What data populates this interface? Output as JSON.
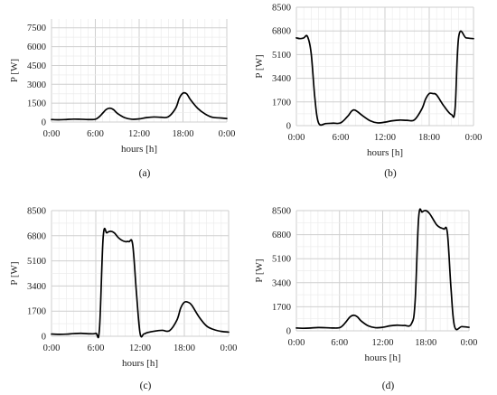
{
  "chart_data": [
    {
      "type": "line",
      "panel": "(a)",
      "xlabel": "hours [h]",
      "ylabel": "P [W]",
      "ylim": [
        0,
        8500
      ],
      "yticks": [
        0,
        1500,
        3000,
        4500,
        6000,
        7500
      ],
      "xlim": [
        0,
        24
      ],
      "xticks": [
        0,
        6,
        12,
        18,
        24
      ],
      "xtick_labels": [
        "0:00",
        "6:00",
        "12:00",
        "18:00",
        "0:00"
      ],
      "grid": true,
      "x": [
        0,
        1,
        2,
        3,
        4,
        5,
        6,
        6.5,
        7,
        7.5,
        8,
        8.5,
        9,
        10,
        11,
        12,
        13,
        14,
        15,
        16,
        17,
        17.5,
        18,
        18.5,
        19,
        20,
        21,
        22,
        23,
        24
      ],
      "series": [
        {
          "values": [
            200,
            180,
            200,
            230,
            220,
            200,
            220,
            400,
            700,
            1000,
            1100,
            980,
            700,
            350,
            220,
            250,
            350,
            400,
            380,
            420,
            1100,
            1900,
            2300,
            2250,
            1800,
            1100,
            650,
            380,
            330,
            280
          ]
        }
      ]
    },
    {
      "type": "line",
      "panel": "(b)",
      "xlabel": "hours [h]",
      "ylabel": "P [W]",
      "ylim": [
        0,
        8500
      ],
      "yticks": [
        0,
        1700,
        3400,
        5100,
        6800,
        8500
      ],
      "xlim": [
        0,
        24
      ],
      "xticks": [
        0,
        6,
        12,
        18,
        24
      ],
      "xtick_labels": [
        "0:00",
        "6:00",
        "12:00",
        "18:00",
        "0:00"
      ],
      "grid": true,
      "x": [
        0,
        0.5,
        1,
        1.5,
        2,
        2.5,
        3,
        4,
        5,
        6,
        7,
        7.5,
        8,
        9,
        10,
        11,
        12,
        13,
        14,
        15,
        16,
        17,
        17.5,
        18,
        18.5,
        19,
        20,
        21,
        21.5,
        22,
        23,
        24
      ],
      "series": [
        {
          "values": [
            6300,
            6250,
            6300,
            6400,
            5200,
            2000,
            200,
            150,
            180,
            200,
            700,
            1050,
            1100,
            700,
            350,
            200,
            250,
            350,
            400,
            380,
            420,
            1200,
            1900,
            2300,
            2300,
            2200,
            1400,
            800,
            1200,
            6400,
            6300,
            6250
          ]
        }
      ]
    },
    {
      "type": "line",
      "panel": "(c)",
      "xlabel": "hours [h]",
      "ylabel": "P [W]",
      "ylim": [
        0,
        8500
      ],
      "yticks": [
        0,
        1700,
        3400,
        5100,
        6800,
        8500
      ],
      "xlim": [
        0,
        24
      ],
      "xticks": [
        0,
        6,
        12,
        18,
        24
      ],
      "xtick_labels": [
        "0:00",
        "6:00",
        "12:00",
        "18:00",
        "0:00"
      ],
      "grid": true,
      "x": [
        0,
        1,
        2,
        3,
        4,
        5,
        6,
        6.5,
        7,
        7.5,
        8,
        8.5,
        9,
        9.5,
        10,
        10.5,
        11,
        11.5,
        12,
        12.5,
        13,
        14,
        15,
        16,
        17,
        17.5,
        18,
        18.5,
        19,
        20,
        21,
        22,
        23,
        24
      ],
      "series": [
        {
          "values": [
            150,
            130,
            140,
            180,
            200,
            170,
            200,
            500,
            6700,
            7000,
            7100,
            7000,
            6700,
            6500,
            6400,
            6400,
            6200,
            3000,
            200,
            150,
            250,
            350,
            400,
            380,
            1100,
            1900,
            2300,
            2300,
            2100,
            1300,
            700,
            450,
            330,
            280
          ]
        }
      ]
    },
    {
      "type": "line",
      "panel": "(d)",
      "xlabel": "hours [h]",
      "ylabel": "P [W]",
      "ylim": [
        0,
        8500
      ],
      "yticks": [
        0,
        1700,
        3400,
        5100,
        6800,
        8500
      ],
      "xlim": [
        0,
        24
      ],
      "xticks": [
        0,
        6,
        12,
        18,
        24
      ],
      "xtick_labels": [
        "0:00",
        "6:00",
        "12:00",
        "18:00",
        "0:00"
      ],
      "grid": true,
      "x": [
        0,
        1,
        2,
        3,
        4,
        5,
        6,
        6.5,
        7,
        7.5,
        8,
        8.5,
        9,
        10,
        11,
        12,
        13,
        14,
        15,
        16,
        16.5,
        17,
        17.5,
        18,
        18.5,
        19,
        19.5,
        20,
        20.5,
        21,
        21.5,
        22,
        23,
        24
      ],
      "series": [
        {
          "values": [
            200,
            180,
            200,
            230,
            220,
            200,
            220,
            400,
            700,
            1000,
            1100,
            980,
            700,
            350,
            220,
            250,
            350,
            400,
            380,
            500,
            2000,
            8000,
            8400,
            8500,
            8300,
            7900,
            7500,
            7300,
            7200,
            6900,
            3000,
            300,
            300,
            250
          ]
        }
      ]
    }
  ]
}
